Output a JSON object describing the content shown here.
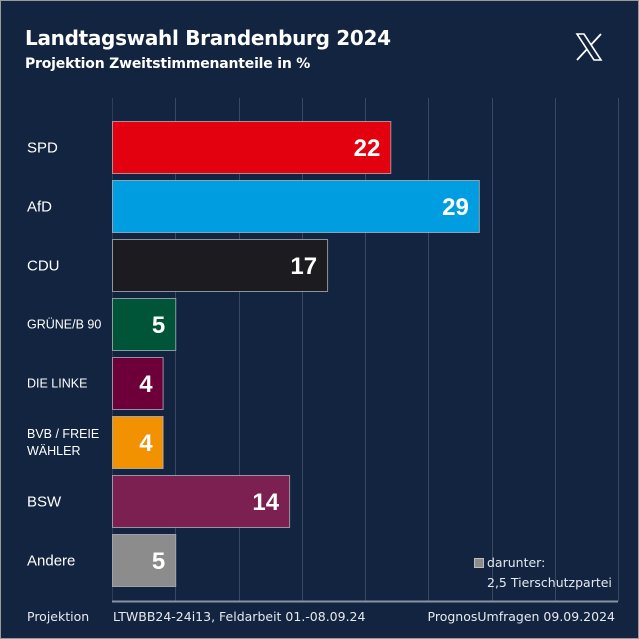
{
  "header": {
    "title": "Landtagswahl Brandenburg 2024",
    "subtitle": "Projektion Zweitstimmenanteile in %",
    "logo_icon": "x-logo-icon"
  },
  "chart_data": {
    "type": "bar",
    "orientation": "horizontal",
    "title": "Landtagswahl Brandenburg 2024",
    "subtitle": "Projektion Zweitstimmenanteile in %",
    "xlabel": "",
    "ylabel": "",
    "xlim": [
      0,
      40
    ],
    "grid": true,
    "grid_step": 5,
    "unit": "%",
    "categories": [
      "SPD",
      "AfD",
      "CDU",
      "GRÜNE/B 90",
      "DIE LINKE",
      "BVB / FREIE WÄHLER",
      "BSW",
      "Andere"
    ],
    "category_lines": [
      [
        "SPD"
      ],
      [
        "AfD"
      ],
      [
        "CDU"
      ],
      [
        "GRÜNE/B 90"
      ],
      [
        "DIE LINKE"
      ],
      [
        "BVB / FREIE",
        "WÄHLER"
      ],
      [
        "BSW"
      ],
      [
        "Andere"
      ]
    ],
    "values": [
      22,
      29,
      17,
      5,
      4,
      4,
      14,
      5
    ],
    "value_labels": [
      "22",
      "29",
      "17",
      "5",
      "4",
      "4",
      "14",
      "5"
    ],
    "colors": [
      "#e3000f",
      "#009ee0",
      "#1c1b1f",
      "#005538",
      "#6d0039",
      "#f39200",
      "#7b2051",
      "#8c8c8c"
    ],
    "annotations": [
      {
        "text": "darunter:",
        "swatch_color": "#8c8c8c"
      },
      {
        "text": "2,5 Tierschutzpartei"
      }
    ]
  },
  "footer": {
    "label": "Projektion",
    "details": "LTWBB24-24i13, Feldarbeit 01.-08.09.24",
    "source": "PrognosUmfragen 09.09.2024"
  },
  "note": {
    "line1": "darunter:",
    "line2": "2,5 Tierschutzpartei"
  }
}
